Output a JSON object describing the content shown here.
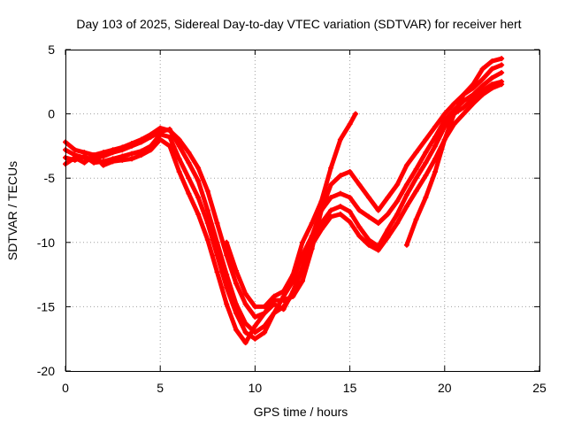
{
  "chart_data": {
    "type": "scatter",
    "title": "Day 103 of 2025, Sidereal Day-to-day VTEC variation (SDTVAR) for receiver hert",
    "xlabel": "GPS time / hours",
    "ylabel": "SDTVAR / TECUs",
    "xlim": [
      0,
      25
    ],
    "ylim": [
      -20,
      5
    ],
    "xticks": [
      0,
      5,
      10,
      15,
      20,
      25
    ],
    "yticks": [
      -20,
      -15,
      -10,
      -5,
      0,
      5
    ],
    "grid": true,
    "marker": "+",
    "color": "#ff0000",
    "series": [
      {
        "x": [
          0.0,
          0.5,
          1.0,
          1.5,
          2.0,
          2.5,
          3.0,
          3.5,
          4.0,
          4.5,
          5.0,
          5.5,
          6.0,
          6.5,
          7.0,
          7.5,
          8.0,
          8.5,
          9.0,
          9.5,
          10.0,
          10.5,
          11.0,
          11.5,
          12.0,
          12.5,
          13.0,
          13.5,
          14.0,
          14.5,
          15.0,
          15.5,
          16.0,
          16.5,
          17.0,
          17.5,
          18.0,
          18.5,
          19.0,
          19.5,
          20.0,
          20.5,
          21.0,
          21.5,
          22.0,
          22.5,
          23.0
        ],
        "y": [
          -2.2,
          -2.8,
          -3.0,
          -3.2,
          -3.0,
          -2.8,
          -2.6,
          -2.3,
          -2.0,
          -1.6,
          -1.1,
          -1.3,
          -2.0,
          -3.0,
          -4.2,
          -6.0,
          -8.5,
          -11.0,
          -13.2,
          -14.8,
          -15.8,
          -15.5,
          -14.5,
          -14.5,
          -14.2,
          -13.0,
          -10.5,
          -7.5,
          -5.5,
          -4.8,
          -4.5,
          -5.5,
          -6.5,
          -7.5,
          -6.5,
          -5.5,
          -4.0,
          -3.0,
          -2.0,
          -1.0,
          0.0,
          0.8,
          1.5,
          2.0,
          2.7,
          3.5,
          3.8
        ]
      },
      {
        "x": [
          0.0,
          0.5,
          1.0,
          1.5,
          2.0,
          2.5,
          3.0,
          3.5,
          4.0,
          4.5,
          5.0,
          5.5,
          6.0,
          6.5,
          7.0,
          7.5,
          8.0,
          8.5,
          9.0,
          9.5,
          10.0,
          10.5,
          11.0,
          11.5,
          12.0,
          12.5,
          13.0,
          13.5,
          14.0,
          14.5,
          15.0,
          15.5,
          16.0,
          16.5,
          17.0,
          17.5,
          18.0,
          18.5,
          19.0,
          19.5,
          20.0,
          20.5,
          21.0,
          21.5,
          22.0,
          22.5,
          23.0
        ],
        "y": [
          -2.8,
          -3.2,
          -3.4,
          -3.5,
          -3.3,
          -3.0,
          -2.8,
          -2.5,
          -2.2,
          -1.8,
          -1.4,
          -1.2,
          -2.5,
          -3.8,
          -5.2,
          -7.5,
          -10.0,
          -12.5,
          -14.8,
          -16.3,
          -17.0,
          -16.5,
          -15.5,
          -15.0,
          -14.0,
          -12.0,
          -9.5,
          -7.5,
          -6.5,
          -6.2,
          -6.5,
          -7.5,
          -8.0,
          -8.5,
          -7.8,
          -6.8,
          -5.5,
          -4.3,
          -3.0,
          -1.8,
          -0.5,
          0.3,
          1.0,
          1.5,
          2.2,
          2.8,
          3.2
        ]
      },
      {
        "x": [
          0.0,
          0.5,
          1.0,
          1.5,
          2.0,
          2.5,
          3.0,
          3.5,
          4.0,
          4.5,
          5.0,
          5.5,
          6.0,
          6.5,
          7.0,
          7.5,
          8.0,
          8.5,
          9.0,
          9.5,
          10.0,
          10.5,
          11.0,
          11.5,
          12.0,
          12.5,
          13.0,
          13.5,
          14.0,
          14.5,
          15.0,
          15.5,
          16.0,
          16.5,
          17.0,
          17.5,
          18.0,
          18.5,
          19.0,
          19.5,
          20.0,
          20.5,
          21.0,
          21.5,
          22.0,
          22.5,
          23.0
        ],
        "y": [
          -3.4,
          -3.6,
          -3.3,
          -3.8,
          -3.7,
          -3.5,
          -3.3,
          -3.1,
          -2.9,
          -2.5,
          -1.6,
          -1.8,
          -3.5,
          -5.0,
          -6.5,
          -8.5,
          -11.0,
          -13.5,
          -15.5,
          -17.0,
          -17.5,
          -17.0,
          -15.5,
          -14.2,
          -13.0,
          -11.0,
          -9.5,
          -8.5,
          -7.5,
          -7.2,
          -7.6,
          -8.8,
          -9.8,
          -10.3,
          -9.0,
          -7.8,
          -6.3,
          -5.0,
          -3.8,
          -2.5,
          -1.0,
          0.0,
          0.5,
          1.2,
          1.8,
          2.3,
          2.5
        ]
      },
      {
        "x": [
          0.0,
          0.5,
          1.0,
          1.5,
          2.0,
          2.5,
          3.0,
          3.5,
          4.0,
          4.5,
          5.0,
          5.5,
          6.0,
          6.5,
          7.0,
          7.5,
          8.0,
          8.5,
          9.0,
          9.5,
          10.0,
          10.5,
          11.0,
          11.5,
          12.0,
          12.5,
          13.0,
          13.5,
          14.0,
          14.5,
          15.0,
          15.5,
          16.0,
          16.5,
          17.0,
          17.5,
          18.0,
          18.5,
          19.0,
          19.5,
          20.0,
          20.5,
          21.0,
          21.5,
          22.0,
          22.5,
          23.0
        ],
        "y": [
          -3.9,
          -3.4,
          -3.8,
          -3.2,
          -4.0,
          -3.7,
          -3.6,
          -3.5,
          -3.2,
          -2.8,
          -2.0,
          -2.5,
          -4.5,
          -6.2,
          -7.8,
          -9.8,
          -12.3,
          -14.8,
          -16.8,
          -17.8,
          -16.5,
          -15.5,
          -14.8,
          -15.2,
          -13.8,
          -12.0,
          -10.2,
          -9.0,
          -8.0,
          -7.8,
          -8.4,
          -9.5,
          -10.2,
          -10.6,
          -9.6,
          -8.5,
          -7.2,
          -6.0,
          -4.8,
          -3.5,
          -2.0,
          -0.8,
          0.0,
          0.8,
          1.5,
          2.0,
          2.3
        ]
      },
      {
        "x": [
          8.5,
          9.0,
          9.5,
          10.0,
          10.5,
          11.0,
          11.5,
          12.0,
          12.5,
          13.0,
          13.5,
          14.0,
          14.5,
          15.0,
          15.3
        ],
        "y": [
          -10.0,
          -12.2,
          -14.0,
          -15.0,
          -15.0,
          -14.2,
          -13.8,
          -12.5,
          -10.0,
          -8.5,
          -6.8,
          -4.2,
          -2.0,
          -0.8,
          0.0
        ]
      },
      {
        "x": [
          18.0,
          18.5,
          19.0,
          19.5,
          20.0,
          20.5,
          21.0,
          21.5,
          22.0,
          22.5,
          23.0
        ],
        "y": [
          -10.2,
          -8.2,
          -6.5,
          -4.5,
          -2.0,
          0.0,
          1.5,
          2.3,
          3.5,
          4.1,
          4.3
        ]
      }
    ]
  }
}
